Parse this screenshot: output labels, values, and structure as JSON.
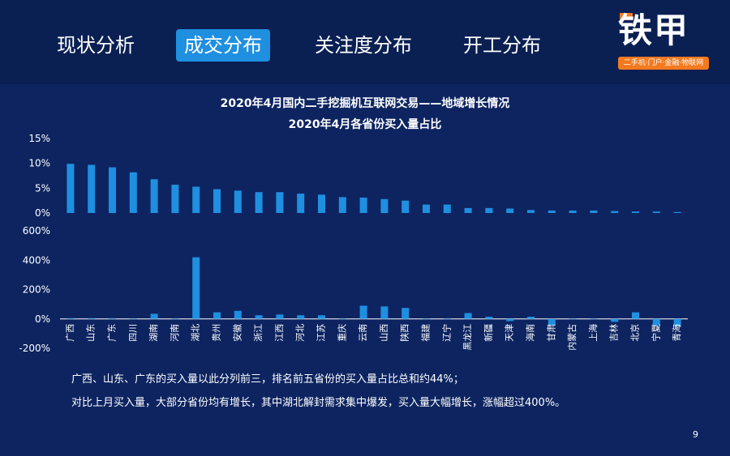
{
  "tabs": [
    {
      "label": "现状分析",
      "active": false
    },
    {
      "label": "成交分布",
      "active": true
    },
    {
      "label": "关注度分布",
      "active": false
    },
    {
      "label": "开工分布",
      "active": false
    }
  ],
  "logo": {
    "name": "铁甲",
    "tagline": "二手机·门户·金融·物联网"
  },
  "titles": {
    "line1": "2020年4月国内二手挖掘机互联网交易——地域增长情况",
    "line2": "2020年4月各省份买入量占比"
  },
  "colors": {
    "bar": "#1f8fe0",
    "background": "#0d2461",
    "topbar": "#0a1f52",
    "accent": "#f47a20"
  },
  "chart_data": [
    {
      "type": "bar",
      "title": "",
      "ylim": [
        0,
        15
      ],
      "yticks": [
        0,
        5,
        10,
        15
      ],
      "ytick_labels": [
        "0%",
        "5%",
        "10%",
        "15%"
      ],
      "categories": [
        "广西",
        "山东",
        "广东",
        "四川",
        "湖南",
        "河南",
        "湖北",
        "贵州",
        "安徽",
        "浙江",
        "江西",
        "河北",
        "江苏",
        "重庆",
        "云南",
        "山西",
        "陕西",
        "福建",
        "辽宁",
        "黑龙江",
        "新疆",
        "天津",
        "海南",
        "甘肃",
        "内蒙古",
        "上海",
        "吉林",
        "北京",
        "宁夏",
        "青海"
      ],
      "values": [
        9.9,
        9.7,
        9.2,
        8.2,
        6.8,
        5.7,
        5.3,
        4.8,
        4.5,
        4.2,
        4.2,
        3.9,
        3.7,
        3.2,
        3.1,
        2.8,
        2.5,
        1.7,
        1.7,
        1.0,
        1.0,
        0.9,
        0.6,
        0.5,
        0.5,
        0.5,
        0.4,
        0.3,
        0.3,
        0.2
      ]
    },
    {
      "type": "bar",
      "title": "",
      "ylim": [
        -200,
        600
      ],
      "yticks": [
        -200,
        0,
        200,
        400,
        600
      ],
      "ytick_labels": [
        "-200%",
        "0%",
        "200%",
        "400%",
        "600%"
      ],
      "categories": [
        "广西",
        "山东",
        "广东",
        "四川",
        "湖南",
        "河南",
        "湖北",
        "贵州",
        "安徽",
        "浙江",
        "江西",
        "河北",
        "江苏",
        "重庆",
        "云南",
        "山西",
        "陕西",
        "福建",
        "辽宁",
        "黑龙江",
        "新疆",
        "天津",
        "海南",
        "甘肃",
        "内蒙古",
        "上海",
        "吉林",
        "北京",
        "宁夏",
        "青海"
      ],
      "values": [
        5,
        5,
        5,
        0,
        35,
        0,
        420,
        45,
        55,
        25,
        30,
        25,
        25,
        0,
        90,
        85,
        75,
        0,
        0,
        40,
        15,
        -15,
        15,
        -45,
        0,
        0,
        -20,
        45,
        -45,
        -50
      ]
    }
  ],
  "notes": [
    "广西、山东、广东的买入量以此分列前三，排名前五省份的买入量占比总和约44%；",
    "对比上月买入量，大部分省份均有增长，其中湖北解封需求集中爆发，买入量大幅增长，涨幅超过400%。"
  ],
  "page_number": "9"
}
